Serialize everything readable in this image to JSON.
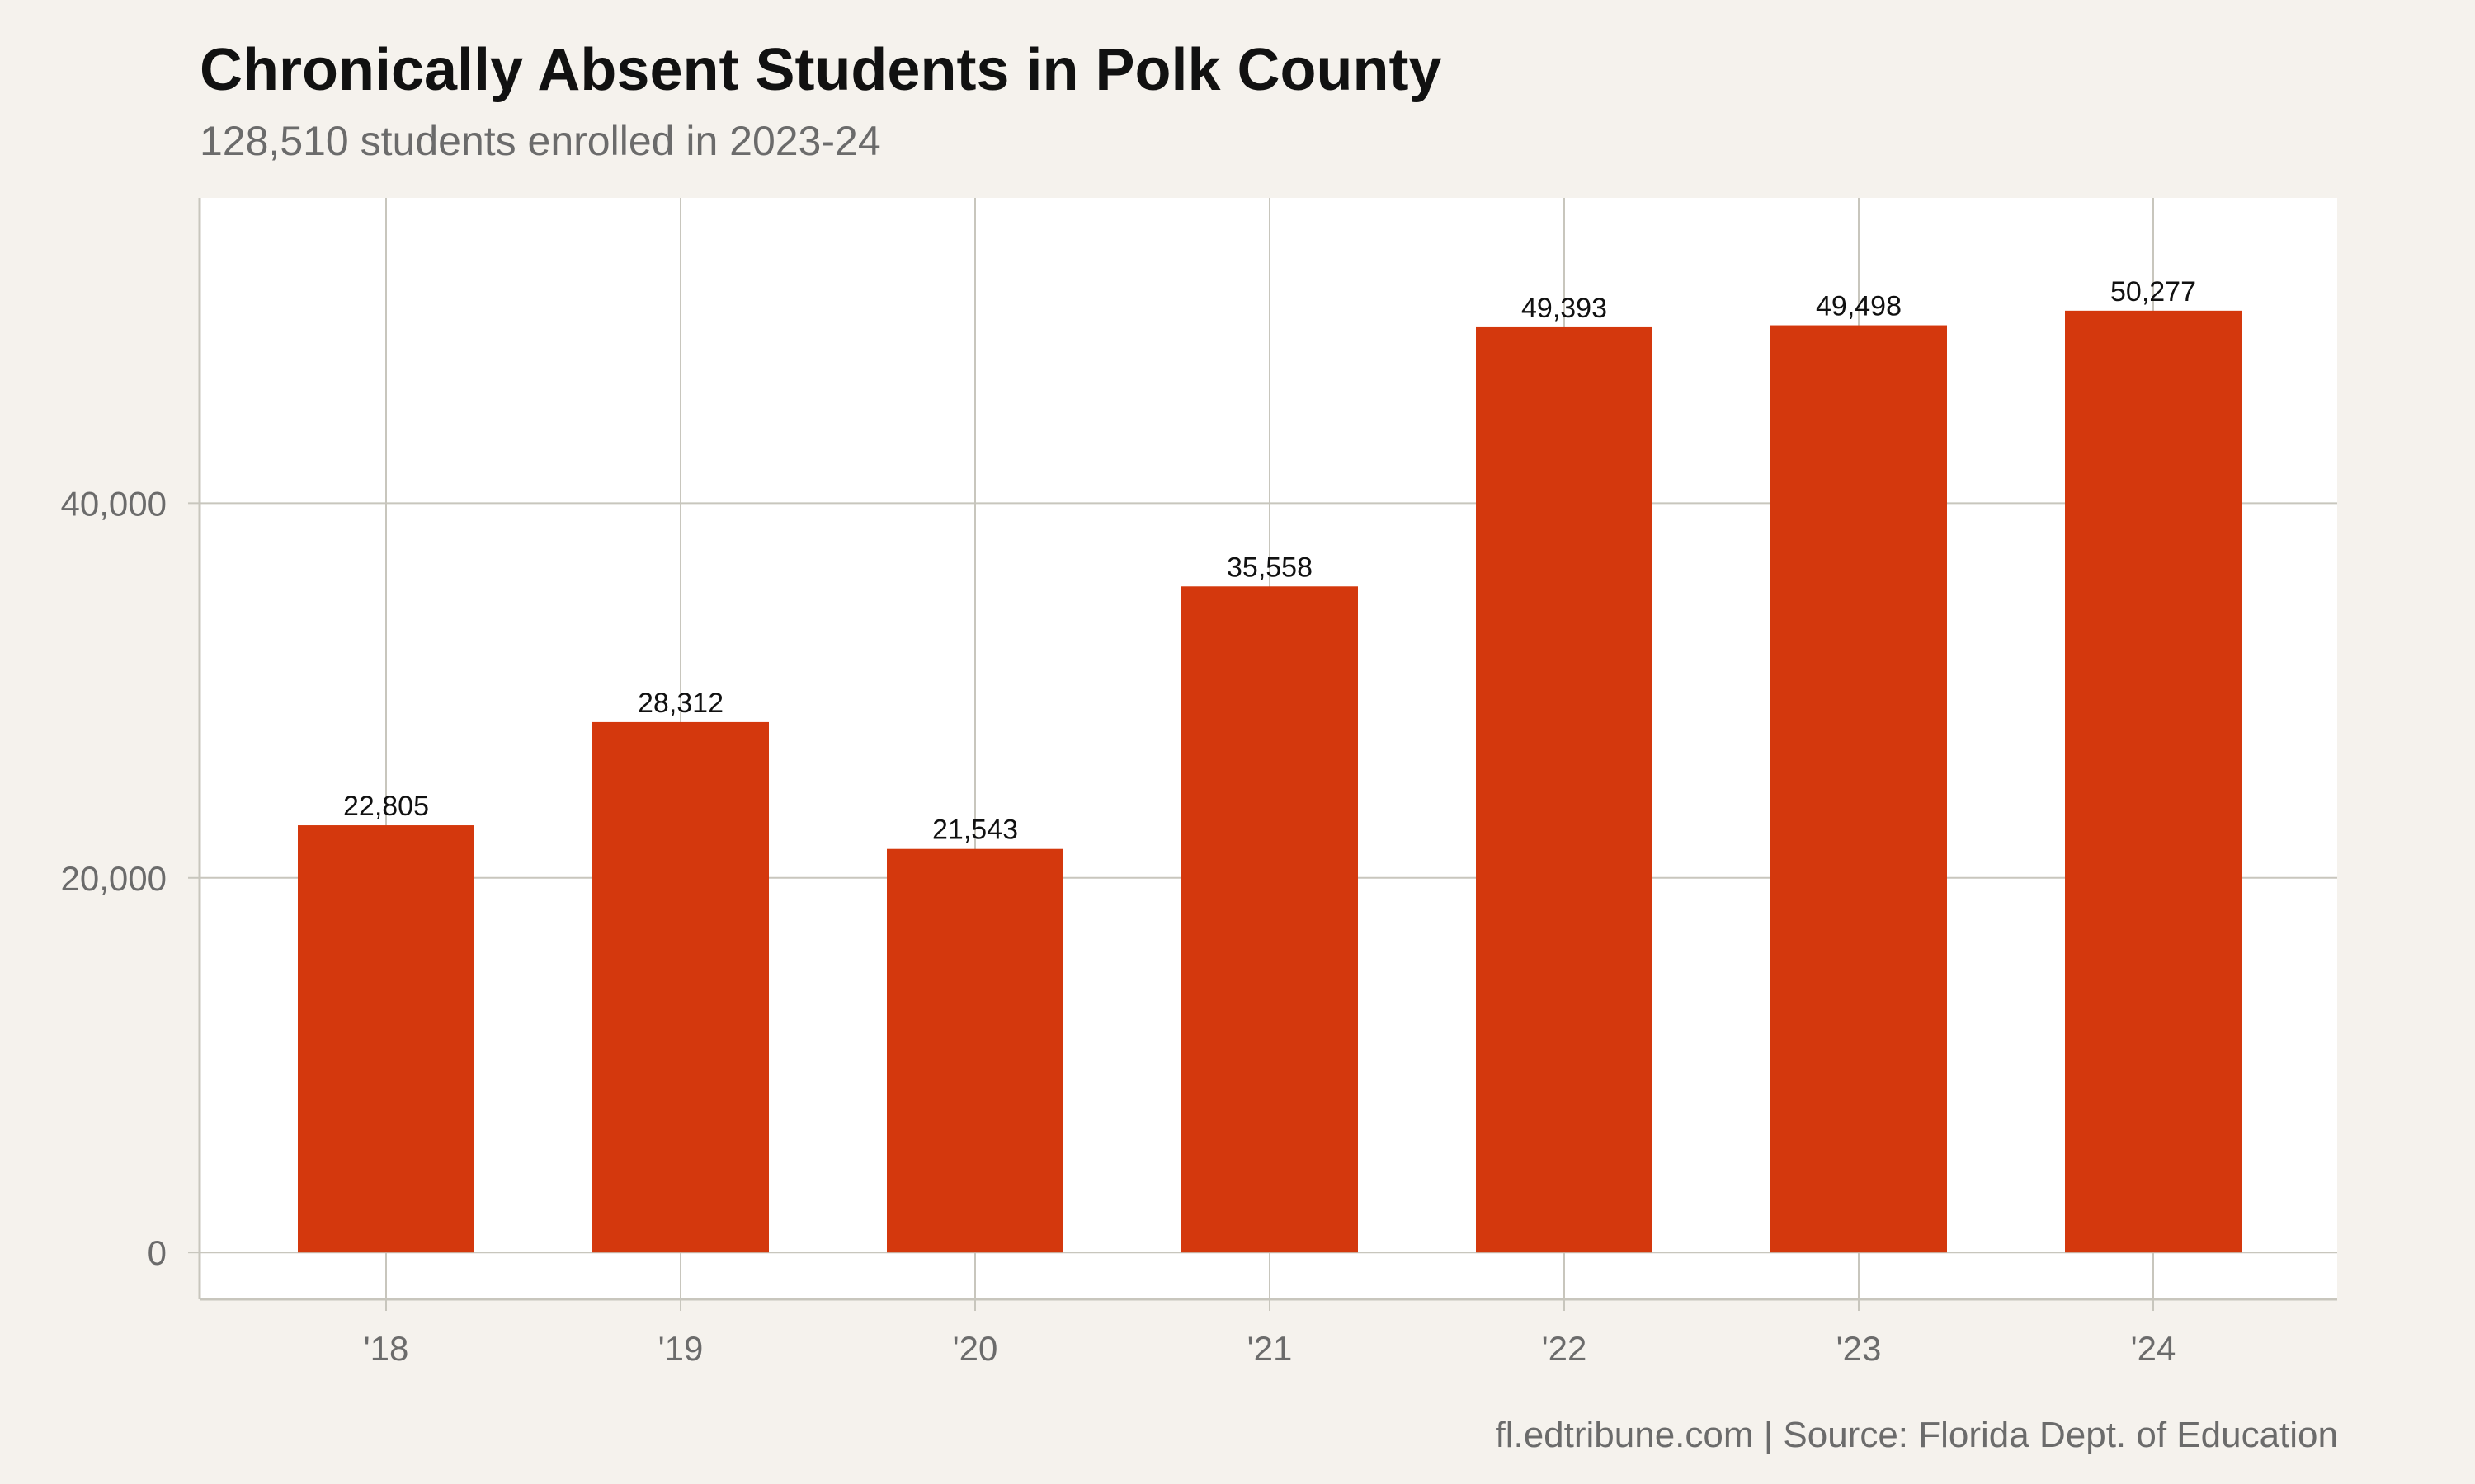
{
  "title": "Chronically Absent Students in Polk County",
  "subtitle": "128,510 students enrolled in 2023-24",
  "caption": "fl.edtribune.com | Source: Florida Dept. of Education",
  "colors": {
    "background": "#f5f2ed",
    "panel": "#ffffff",
    "bar": "#d4380d",
    "grid": "#c8c6bd"
  },
  "chart_data": {
    "type": "bar",
    "categories": [
      "'18",
      "'19",
      "'20",
      "'21",
      "'22",
      "'23",
      "'24"
    ],
    "values": [
      22805,
      28312,
      21543,
      35558,
      49393,
      49498,
      50277
    ],
    "value_labels": [
      "22,805",
      "28,312",
      "21,543",
      "35,558",
      "49,393",
      "49,498",
      "50,277"
    ],
    "y_ticks": [
      0,
      20000,
      40000
    ],
    "y_tick_labels": [
      "0",
      "20,000",
      "40,000"
    ],
    "ylim": [
      -2500,
      56300
    ],
    "xlabel": "",
    "ylabel": "",
    "grid": true,
    "legend": "none"
  }
}
